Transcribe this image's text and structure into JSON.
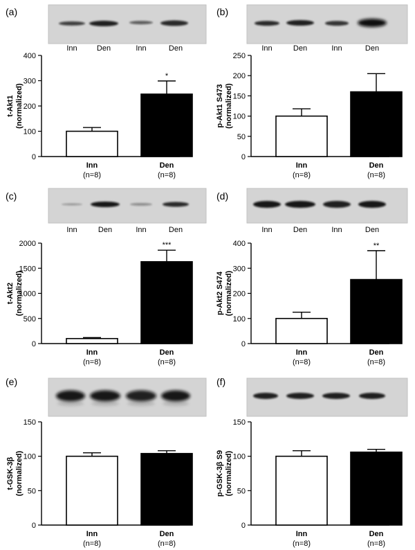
{
  "chart_data": [
    {
      "panel_label": "(a)",
      "type": "bar",
      "blot_lane_labels": [
        "Inn",
        "Den",
        "Inn",
        "Den"
      ],
      "ylabel_line1": "t-Akt1",
      "ylabel_line2": "(normalized)",
      "ylim": [
        0,
        400
      ],
      "yticks": [
        0,
        100,
        200,
        300,
        400
      ],
      "categories": [
        "Inn",
        "Den"
      ],
      "category_notes": [
        "(n=8)",
        "(n=8)"
      ],
      "values": [
        100,
        247
      ],
      "errors": [
        15,
        52
      ],
      "significance": [
        "",
        "*"
      ],
      "fill_colors": [
        "#ffffff",
        "#000000"
      ]
    },
    {
      "panel_label": "(b)",
      "type": "bar",
      "blot_lane_labels": [
        "Inn",
        "Den",
        "Inn",
        "Den"
      ],
      "ylabel_line1": "p-Akt1 S473",
      "ylabel_line2": "(normalized)",
      "ylim": [
        0,
        250
      ],
      "yticks": [
        0,
        50,
        100,
        150,
        200,
        250
      ],
      "categories": [
        "Inn",
        "Den"
      ],
      "category_notes": [
        "(n=8)",
        "(n=8)"
      ],
      "values": [
        100,
        160
      ],
      "errors": [
        18,
        45
      ],
      "significance": [
        "",
        ""
      ],
      "fill_colors": [
        "#ffffff",
        "#000000"
      ]
    },
    {
      "panel_label": "(c)",
      "type": "bar",
      "blot_lane_labels": [
        "Inn",
        "Den",
        "Inn",
        "Den"
      ],
      "ylabel_line1": "t-Akt2",
      "ylabel_line2": "(normalized)",
      "ylim": [
        0,
        2000
      ],
      "yticks": [
        0,
        500,
        1000,
        1500,
        2000
      ],
      "categories": [
        "Inn",
        "Den"
      ],
      "category_notes": [
        "(n=8)",
        "(n=8)"
      ],
      "values": [
        100,
        1630
      ],
      "errors": [
        20,
        230
      ],
      "significance": [
        "",
        "***"
      ],
      "fill_colors": [
        "#ffffff",
        "#000000"
      ]
    },
    {
      "panel_label": "(d)",
      "type": "bar",
      "blot_lane_labels": [
        "Inn",
        "Den",
        "Inn",
        "Den"
      ],
      "ylabel_line1": "p-Akt2  S474",
      "ylabel_line2": "(normalized)",
      "ylim": [
        0,
        400
      ],
      "yticks": [
        0,
        100,
        200,
        300,
        400
      ],
      "categories": [
        "Inn",
        "Den"
      ],
      "category_notes": [
        "(n=8)",
        "(n=8)"
      ],
      "values": [
        100,
        255
      ],
      "errors": [
        25,
        115
      ],
      "significance": [
        "",
        "**"
      ],
      "fill_colors": [
        "#ffffff",
        "#000000"
      ]
    },
    {
      "panel_label": "(e)",
      "type": "bar",
      "blot_lane_labels": [],
      "ylabel_line1": "t-GSK-3β",
      "ylabel_line2": "(normalized)",
      "ylim": [
        0,
        150
      ],
      "yticks": [
        0,
        50,
        100,
        150
      ],
      "categories": [
        "Inn",
        "Den"
      ],
      "category_notes": [
        "(n=8)",
        "(n=8)"
      ],
      "values": [
        100,
        104
      ],
      "errors": [
        5,
        4
      ],
      "significance": [
        "",
        ""
      ],
      "fill_colors": [
        "#ffffff",
        "#000000"
      ]
    },
    {
      "panel_label": "(f)",
      "type": "bar",
      "blot_lane_labels": [],
      "ylabel_line1": "p-GSK-3β S9",
      "ylabel_line2": "(normalized)",
      "ylim": [
        0,
        150
      ],
      "yticks": [
        0,
        50,
        100,
        150
      ],
      "categories": [
        "Inn",
        "Den"
      ],
      "category_notes": [
        "(n=8)",
        "(n=8)"
      ],
      "values": [
        100,
        106
      ],
      "errors": [
        8,
        4
      ],
      "significance": [
        "",
        ""
      ],
      "fill_colors": [
        "#ffffff",
        "#000000"
      ]
    }
  ]
}
